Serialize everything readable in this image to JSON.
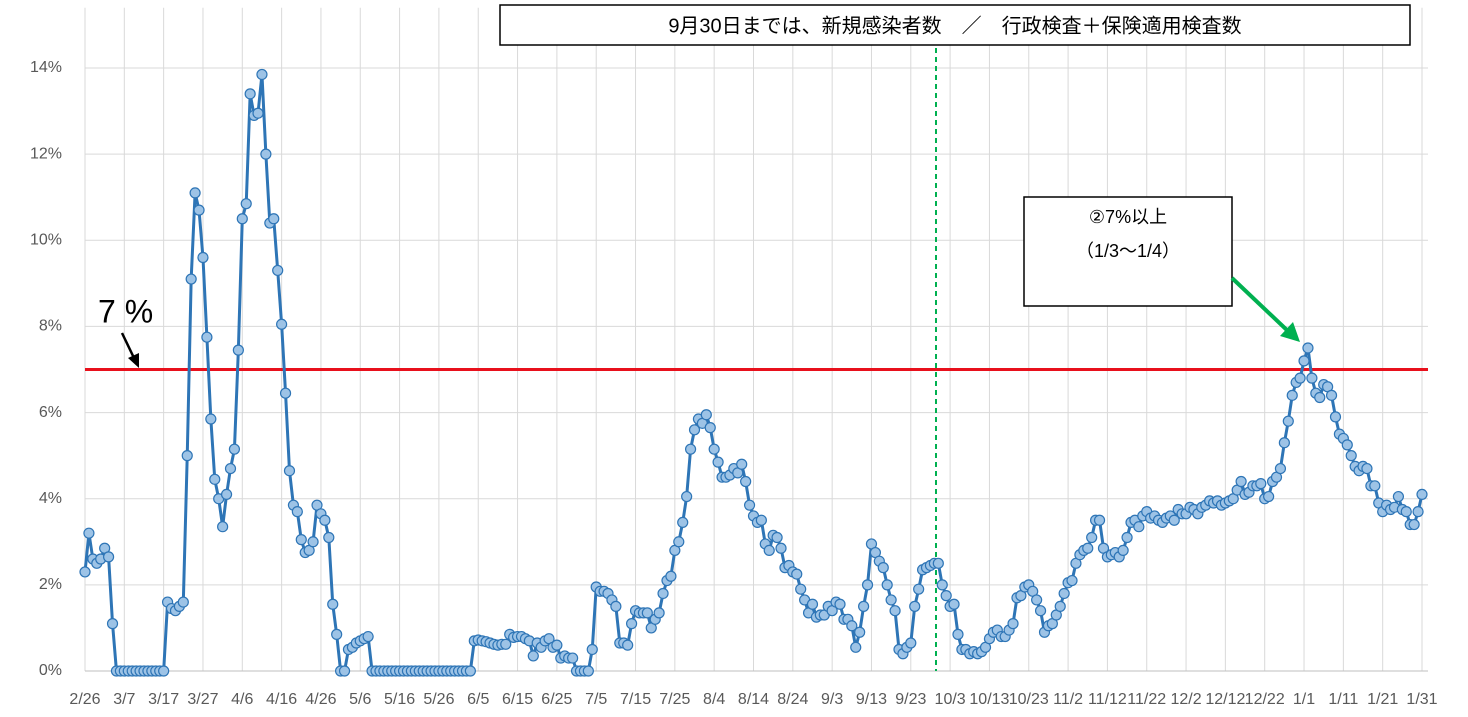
{
  "chart_data": {
    "type": "line",
    "annotations": [
      "9月30日までは、新規感染者数　／　行政検査＋保険適用検査数",
      "②7%以上",
      "（1/3～1/4）"
    ],
    "threshold": 7,
    "threshold_label": "7 %",
    "threshold_color": "#e8101c",
    "categories": [
      "2/26",
      null,
      null,
      null,
      null,
      null,
      null,
      null,
      null,
      null,
      "3/7",
      null,
      null,
      null,
      null,
      null,
      null,
      null,
      null,
      null,
      "3/17",
      null,
      null,
      null,
      null,
      null,
      null,
      null,
      null,
      null,
      "3/27",
      null,
      null,
      null,
      null,
      null,
      null,
      null,
      null,
      null,
      "4/6",
      null,
      null,
      null,
      null,
      null,
      null,
      null,
      null,
      null,
      "4/16",
      null,
      null,
      null,
      null,
      null,
      null,
      null,
      null,
      null,
      "4/26",
      null,
      null,
      null,
      null,
      null,
      null,
      null,
      null,
      null,
      "5/6",
      null,
      null,
      null,
      null,
      null,
      null,
      null,
      null,
      null,
      "5/16",
      null,
      null,
      null,
      null,
      null,
      null,
      null,
      null,
      null,
      "5/26",
      null,
      null,
      null,
      null,
      null,
      null,
      null,
      null,
      null,
      "6/5",
      null,
      null,
      null,
      null,
      null,
      null,
      null,
      null,
      null,
      "6/15",
      null,
      null,
      null,
      null,
      null,
      null,
      null,
      null,
      null,
      "6/25",
      null,
      null,
      null,
      null,
      null,
      null,
      null,
      null,
      null,
      "7/5",
      null,
      null,
      null,
      null,
      null,
      null,
      null,
      null,
      null,
      "7/15",
      null,
      null,
      null,
      null,
      null,
      null,
      null,
      null,
      null,
      "7/25",
      null,
      null,
      null,
      null,
      null,
      null,
      null,
      null,
      null,
      "8/4",
      null,
      null,
      null,
      null,
      null,
      null,
      null,
      null,
      null,
      "8/14",
      null,
      null,
      null,
      null,
      null,
      null,
      null,
      null,
      null,
      "8/24",
      null,
      null,
      null,
      null,
      null,
      null,
      null,
      null,
      null,
      "9/3",
      null,
      null,
      null,
      null,
      null,
      null,
      null,
      null,
      null,
      "9/13",
      null,
      null,
      null,
      null,
      null,
      null,
      null,
      null,
      null,
      "9/23",
      null,
      null,
      null,
      null,
      null,
      null,
      null,
      null,
      null,
      "10/3",
      null,
      null,
      null,
      null,
      null,
      null,
      null,
      null,
      null,
      "10/13",
      null,
      null,
      null,
      null,
      null,
      null,
      null,
      null,
      null,
      "10/23",
      null,
      null,
      null,
      null,
      null,
      null,
      null,
      null,
      null,
      "11/2",
      null,
      null,
      null,
      null,
      null,
      null,
      null,
      null,
      null,
      "11/12",
      null,
      null,
      null,
      null,
      null,
      null,
      null,
      null,
      null,
      "11/22",
      null,
      null,
      null,
      null,
      null,
      null,
      null,
      null,
      null,
      "12/2",
      null,
      null,
      null,
      null,
      null,
      null,
      null,
      null,
      null,
      "12/12",
      null,
      null,
      null,
      null,
      null,
      null,
      null,
      null,
      null,
      "12/22",
      null,
      null,
      null,
      null,
      null,
      null,
      null,
      null,
      null,
      "1/1",
      null,
      null,
      null,
      null,
      null,
      null,
      null,
      null,
      null,
      "1/11",
      null,
      null,
      null,
      null,
      null,
      null,
      null,
      null,
      null,
      "1/21",
      null,
      null,
      null,
      null,
      null,
      null,
      null,
      null,
      null,
      "1/31"
    ],
    "series": [
      {
        "color": "#2e75b6",
        "marker_color": "#9dc3e6",
        "values": [
          2.3,
          3.2,
          2.6,
          2.5,
          2.6,
          2.85,
          2.65,
          1.1,
          0,
          0,
          0,
          0,
          0,
          0,
          0,
          0,
          0,
          0,
          0,
          0,
          0,
          1.6,
          1.45,
          1.4,
          1.5,
          1.6,
          5.0,
          9.1,
          11.1,
          10.7,
          9.6,
          7.75,
          5.85,
          4.45,
          4.0,
          3.35,
          4.1,
          4.7,
          5.15,
          7.45,
          10.5,
          10.85,
          13.4,
          12.9,
          12.95,
          13.85,
          12.0,
          10.4,
          10.5,
          9.3,
          8.05,
          6.45,
          4.65,
          3.85,
          3.7,
          3.05,
          2.75,
          2.8,
          3.0,
          3.85,
          3.65,
          3.5,
          3.1,
          1.55,
          0.85,
          0,
          0,
          0.5,
          0.55,
          0.65,
          0.7,
          0.75,
          0.8,
          0,
          0,
          0,
          0,
          0,
          0,
          0,
          0,
          0,
          0,
          0,
          0,
          0,
          0,
          0,
          0,
          0,
          0,
          0,
          0,
          0,
          0,
          0,
          0,
          0,
          0,
          0.7,
          0.72,
          0.7,
          0.68,
          0.65,
          0.62,
          0.6,
          0.62,
          0.62,
          0.85,
          0.78,
          0.8,
          0.8,
          0.75,
          0.7,
          0.35,
          0.65,
          0.55,
          0.7,
          0.75,
          0.55,
          0.6,
          0.3,
          0.35,
          0.3,
          0.3,
          0,
          0,
          0,
          0,
          0.5,
          1.95,
          1.85,
          1.85,
          1.8,
          1.65,
          1.5,
          0.65,
          0.65,
          0.6,
          1.1,
          1.4,
          1.35,
          1.35,
          1.35,
          1.0,
          1.2,
          1.35,
          1.8,
          2.1,
          2.2,
          2.8,
          3.0,
          3.45,
          4.05,
          5.15,
          5.6,
          5.85,
          5.75,
          5.95,
          5.65,
          5.15,
          4.85,
          4.5,
          4.5,
          4.55,
          4.7,
          4.6,
          4.8,
          4.4,
          3.85,
          3.6,
          3.45,
          3.5,
          2.95,
          2.8,
          3.15,
          3.1,
          2.85,
          2.4,
          2.45,
          2.3,
          2.25,
          1.9,
          1.65,
          1.35,
          1.55,
          1.25,
          1.3,
          1.3,
          1.5,
          1.4,
          1.6,
          1.55,
          1.2,
          1.2,
          1.05,
          0.55,
          0.9,
          1.5,
          2.0,
          2.95,
          2.75,
          2.55,
          2.4,
          2.0,
          1.65,
          1.4,
          0.5,
          0.4,
          0.55,
          0.65,
          1.5,
          1.9,
          2.35,
          2.4,
          2.45,
          2.5,
          2.5,
          2.0,
          1.75,
          1.5,
          1.55,
          0.85,
          0.5,
          0.5,
          0.4,
          0.45,
          0.4,
          0.45,
          0.55,
          0.75,
          0.9,
          0.95,
          0.8,
          0.8,
          0.95,
          1.1,
          1.7,
          1.75,
          1.95,
          2.0,
          1.85,
          1.65,
          1.4,
          0.9,
          1.05,
          1.1,
          1.3,
          1.5,
          1.8,
          2.05,
          2.1,
          2.5,
          2.7,
          2.8,
          2.85,
          3.1,
          3.5,
          3.5,
          2.85,
          2.65,
          2.7,
          2.75,
          2.65,
          2.8,
          3.1,
          3.45,
          3.5,
          3.35,
          3.6,
          3.7,
          3.55,
          3.6,
          3.5,
          3.45,
          3.55,
          3.6,
          3.5,
          3.75,
          3.65,
          3.65,
          3.8,
          3.75,
          3.65,
          3.8,
          3.85,
          3.95,
          3.9,
          3.95,
          3.85,
          3.9,
          3.95,
          4.0,
          4.2,
          4.4,
          4.1,
          4.15,
          4.3,
          4.3,
          4.35,
          4.0,
          4.05,
          4.4,
          4.5,
          4.7,
          5.3,
          5.8,
          6.4,
          6.7,
          6.8,
          7.2,
          7.5,
          6.8,
          6.45,
          6.35,
          6.65,
          6.6,
          6.4,
          5.9,
          5.5,
          5.4,
          5.25,
          5.0,
          4.75,
          4.65,
          4.75,
          4.7,
          4.3,
          4.3,
          3.9,
          3.7,
          3.85,
          3.75,
          3.8,
          4.05,
          3.75,
          3.7,
          3.4,
          3.4,
          3.7,
          4.1
        ]
      }
    ],
    "ylim": [
      0,
      15.4
    ],
    "yticks": [
      {
        "value": 0,
        "label": "0%"
      },
      {
        "value": 2,
        "label": "2%"
      },
      {
        "value": 4,
        "label": "4%"
      },
      {
        "value": 6,
        "label": "6%"
      },
      {
        "value": 8,
        "label": "8%"
      },
      {
        "value": 10,
        "label": "10%"
      },
      {
        "value": 12,
        "label": "12%"
      },
      {
        "value": 14,
        "label": "14%"
      }
    ],
    "grid": true
  }
}
